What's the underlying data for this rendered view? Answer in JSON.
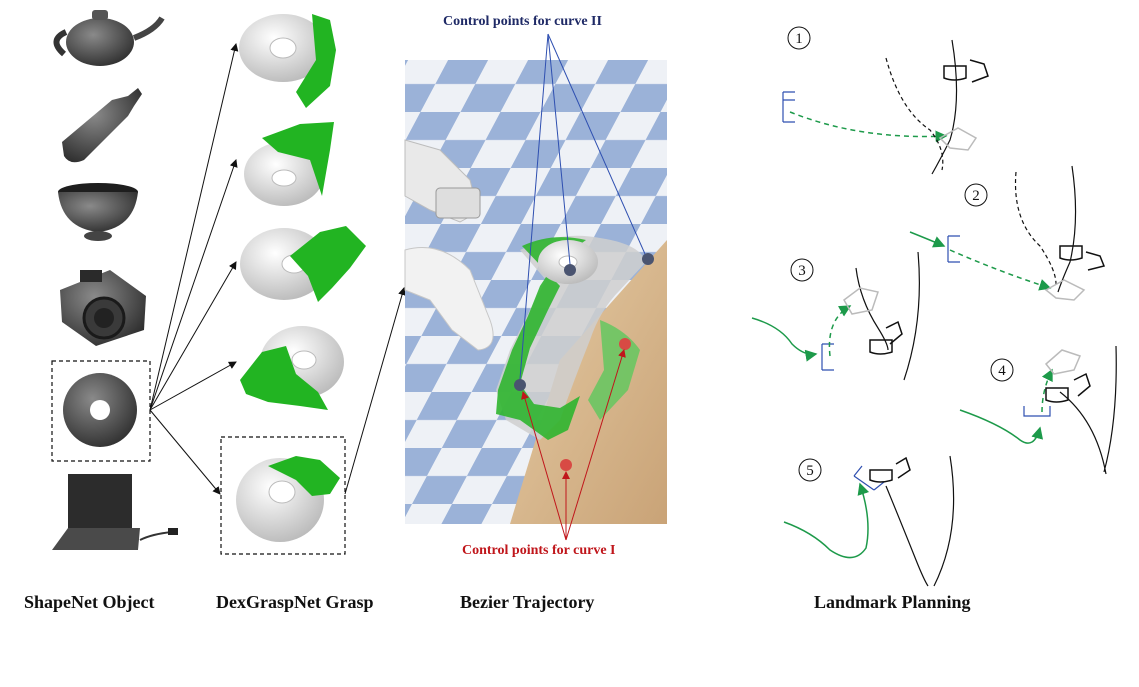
{
  "captions": {
    "shapenet": "ShapeNet Object",
    "dexgrasp": "DexGraspNet Grasp",
    "bezier": "Bezier Trajectory",
    "landmark": "Landmark Planning"
  },
  "annotations": {
    "curve2": "Control points for curve II",
    "curve1": "Control points for curve I"
  },
  "steps": [
    "1",
    "2",
    "3",
    "4",
    "5"
  ],
  "objects": [
    "teapot-icon",
    "bottle-icon",
    "bowl-icon",
    "camera-icon",
    "torus-icon",
    "laptop-icon"
  ],
  "colors": {
    "curve2": "#1f2a66",
    "curve1": "#c0161b",
    "hand": "#22b422",
    "path": "#1d9a4a",
    "floor_blue": "#9bb2d8",
    "table": "#d8b98c"
  }
}
